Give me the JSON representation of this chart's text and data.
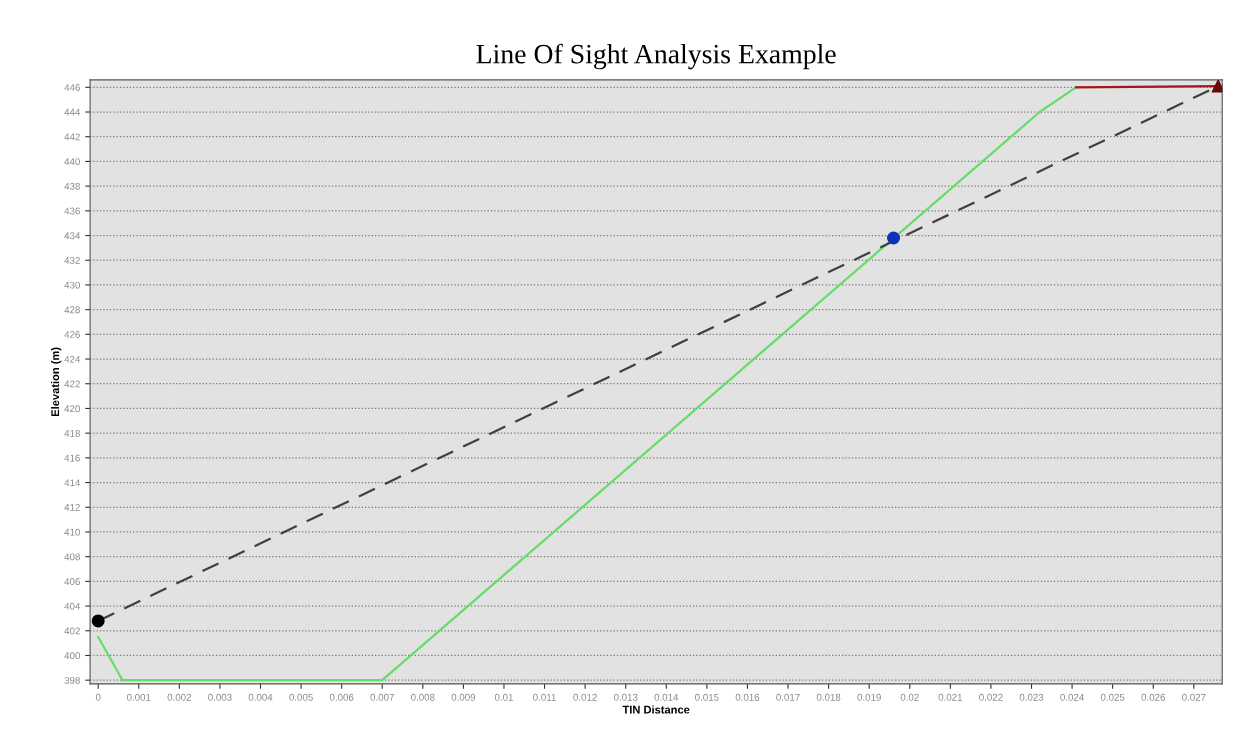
{
  "chart_data": {
    "type": "line",
    "title": "Line Of Sight Analysis Example",
    "xlabel": "TIN Distance",
    "ylabel": "Elevation (m)",
    "xlim": [
      -0.0002,
      0.0277
    ],
    "ylim": [
      397.7,
      446.6
    ],
    "xticks": [
      0,
      0.001,
      0.002,
      0.003,
      0.004,
      0.005,
      0.006,
      0.007,
      0.008,
      0.009,
      0.01,
      0.011,
      0.012,
      0.013,
      0.014,
      0.015,
      0.016,
      0.017,
      0.018,
      0.019,
      0.02,
      0.021,
      0.022,
      0.023,
      0.024,
      0.025,
      0.026,
      0.027
    ],
    "yticks": [
      398,
      400,
      402,
      404,
      406,
      408,
      410,
      412,
      414,
      416,
      418,
      420,
      422,
      424,
      426,
      428,
      430,
      432,
      434,
      436,
      438,
      440,
      442,
      444,
      446
    ],
    "grid": "y",
    "legend": false,
    "series": [
      {
        "color": "#66dd66",
        "x": [
          0,
          0.0006,
          0.007,
          0.0232,
          0.0241
        ],
        "values": [
          401.5,
          398,
          398,
          444,
          446
        ]
      },
      {
        "color": "#a01818",
        "x": [
          0.0241,
          0.0276
        ],
        "values": [
          446,
          446.1
        ]
      },
      {
        "color": "#404040",
        "line_style": "dashed",
        "x": [
          0,
          0.0276
        ],
        "values": [
          402.8,
          446.1
        ]
      },
      {
        "type": "scatter",
        "color": "#000000",
        "marker": "circle",
        "x": [
          0
        ],
        "values": [
          402.8
        ]
      },
      {
        "type": "scatter",
        "color": "#1030c0",
        "marker": "circle",
        "x": [
          0.0196
        ],
        "values": [
          433.8
        ]
      },
      {
        "type": "scatter",
        "color": "#6a0a0a",
        "marker": "triangle",
        "x": [
          0.0276
        ],
        "values": [
          446.1
        ]
      }
    ]
  }
}
